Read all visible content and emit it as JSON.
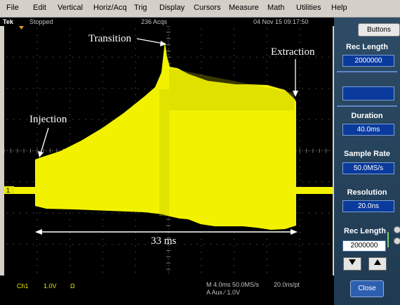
{
  "menu": [
    "File",
    "Edit",
    "Vertical",
    "Horiz/Acq",
    "Trig",
    "Display",
    "Cursors",
    "Measure",
    "Math",
    "Utilities",
    "Help"
  ],
  "status": {
    "brand": "Tek",
    "state": "Stopped",
    "acqs": "236 Acqs",
    "datetime": "04 Nov 15 09:17:50"
  },
  "annotations": {
    "transition": "Transition",
    "extraction": "Extraction",
    "injection": "Injection",
    "span": "33 ms"
  },
  "readout": {
    "channel": "Ch1",
    "scale": "1.0V",
    "coupling": "Ω",
    "timebase": "M 4.0ms 50.0MS/s",
    "aux": "A  Aux  ⁄  1.0V",
    "perpt": "20.0ns/pt"
  },
  "ch_marker": "1",
  "panel": {
    "buttons_label": "Buttons",
    "rec_length_label": "Rec Length",
    "rec_length_value": "2000000",
    "duration_label": "Duration",
    "duration_value": "40.0ms",
    "sample_rate_label": "Sample Rate",
    "sample_rate_value": "50.0MS/s",
    "resolution_label": "Resolution",
    "resolution_value": "20.0ns",
    "rec_length2_label": "Rec Length",
    "rec_length2_value": "2000000",
    "close_label": "Close"
  },
  "colors": {
    "trace": "#f2f200",
    "grid": "#4a4a4a",
    "panel": "#2e4c66",
    "value_box": "#0a3a9c",
    "channel": "#e6e600"
  }
}
